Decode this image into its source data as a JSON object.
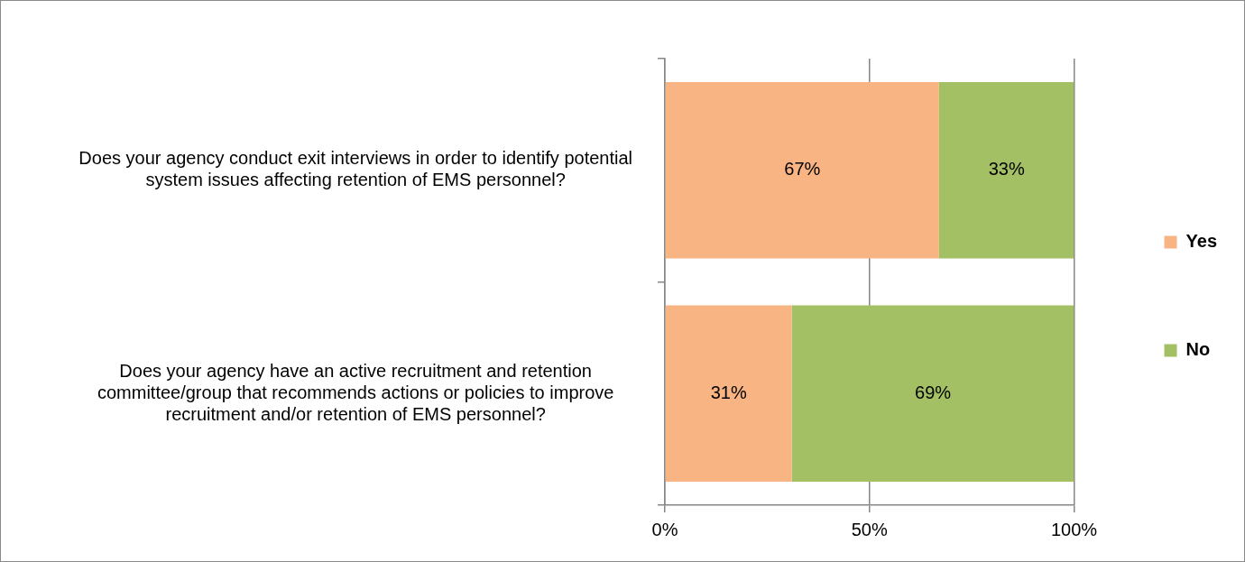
{
  "chart_data": {
    "type": "bar",
    "orientation": "horizontal",
    "stacked": true,
    "categories": [
      "Does your agency conduct exit interviews in order to identify potential system issues affecting retention of EMS personnel?",
      "Does your agency have an active recruitment and retention committee/group that recommends actions or policies to improve recruitment and/or retention of EMS personnel?"
    ],
    "series": [
      {
        "name": "Yes",
        "color": "#f8b482",
        "values": [
          67,
          31
        ]
      },
      {
        "name": "No",
        "color": "#a4c064",
        "values": [
          33,
          69
        ]
      }
    ],
    "xlim": [
      0,
      100
    ],
    "xticks": [
      {
        "value": 0,
        "label": "0%"
      },
      {
        "value": 50,
        "label": "50%"
      },
      {
        "value": 100,
        "label": "100%"
      }
    ],
    "value_labels": [
      [
        "67%",
        "31%"
      ],
      [
        "33%",
        "69%"
      ]
    ],
    "grid": "x",
    "legend": "right"
  }
}
